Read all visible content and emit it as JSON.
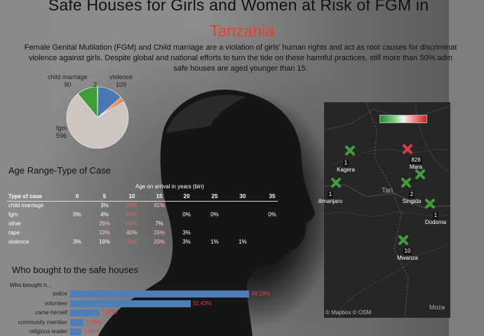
{
  "header": {
    "title_line1": "Safe Houses for Girls and Women at Risk of FGM in",
    "title_line2": "Tanzania",
    "intro_line1": "Female Genital Mutilation (FGM) and Child marriage  are a violation of girls' human rights and act as root causes for discriminat",
    "intro_line2": "violence against girls. Despite global and national efforts to turn the tide on these harmful practices, still more than 50% adm",
    "intro_line3": "safe houses are aged younger than 15."
  },
  "pie": {
    "slices": [
      {
        "name": "child marriage",
        "value": 90,
        "color": "#3f9e3a"
      },
      {
        "name": "",
        "value": 2,
        "color": "#f0f0f0"
      },
      {
        "name": "violence",
        "value": 109,
        "color": "#4b78b5"
      },
      {
        "name": "",
        "value": 12,
        "color": "#f08a2c"
      },
      {
        "name": "",
        "value": 8,
        "color": "#e14b3b"
      },
      {
        "name": "fgm",
        "value": 596,
        "color": "#cfc5c0"
      }
    ],
    "labels": {
      "child_marriage": "child marriage",
      "child_marriage_val": "90",
      "small": "2",
      "violence": "violence",
      "violence_val": "109",
      "fgm": "fgm",
      "fgm_val": "596"
    }
  },
  "age_table": {
    "title": "Age Range-Type of Case",
    "caption": "Age on arrival in years (bin)",
    "header_label": "Type of case",
    "columns": [
      "0",
      "5",
      "10",
      "15",
      "20",
      "25",
      "30",
      "35"
    ],
    "rows": [
      {
        "label": "child marriage",
        "cells": [
          "",
          "3%",
          "56%",
          "41%",
          "",
          "",
          "",
          ""
        ]
      },
      {
        "label": "fgm",
        "cells": [
          "0%",
          "4%",
          "69%",
          "",
          "0%",
          "0%",
          "",
          "0%"
        ]
      },
      {
        "label": "other",
        "cells": [
          "",
          "29%",
          "64%",
          "7%",
          "",
          "",
          "",
          ""
        ]
      },
      {
        "label": "rape",
        "cells": [
          "",
          "33%",
          "40%",
          "25%",
          "3%",
          "",
          "",
          ""
        ]
      },
      {
        "label": "violence",
        "cells": [
          "3%",
          "19%",
          "54%",
          "20%",
          "3%",
          "1%",
          "1%",
          ""
        ]
      }
    ],
    "highlight_color": "#ff5a4f"
  },
  "who": {
    "title": "Who bought to the safe houses",
    "subtitle": "Who brought h..."
  },
  "chart_data": {
    "type": "bar",
    "categories": [
      "police",
      "volunteer",
      "came herself",
      "community member",
      "religious leader"
    ],
    "values": [
      48.18,
      32.43,
      7.87,
      3.66,
      3.06
    ],
    "value_labels": [
      "48.18%",
      "32.43%",
      "7.87%",
      "3.66%",
      "3.06%"
    ],
    "title": "",
    "xlabel": "",
    "ylabel": "Who brought h...",
    "bar_color": "#4f7cba",
    "label_color": "#e83c3c"
  },
  "map": {
    "markers": [
      {
        "name": "Kagera",
        "count": "1",
        "color": "#3f9e3a"
      },
      {
        "name": "Mara",
        "count": "828",
        "color": "#d33a4a"
      },
      {
        "name": "",
        "count": "",
        "color": "#3f9e3a"
      },
      {
        "name": "ilimanjaro",
        "count": "1",
        "color": "#3f9e3a"
      },
      {
        "name": "Singida",
        "count": "2",
        "color": "#3f9e3a"
      },
      {
        "name": "Dodoma",
        "count": "1",
        "color": "#3f9e3a"
      },
      {
        "name": "Mwanza",
        "count": "10",
        "color": "#3f9e3a"
      }
    ],
    "country_label": "Tan",
    "edge_label": "Moza",
    "attribution": "© Mapbox  © OSM"
  }
}
